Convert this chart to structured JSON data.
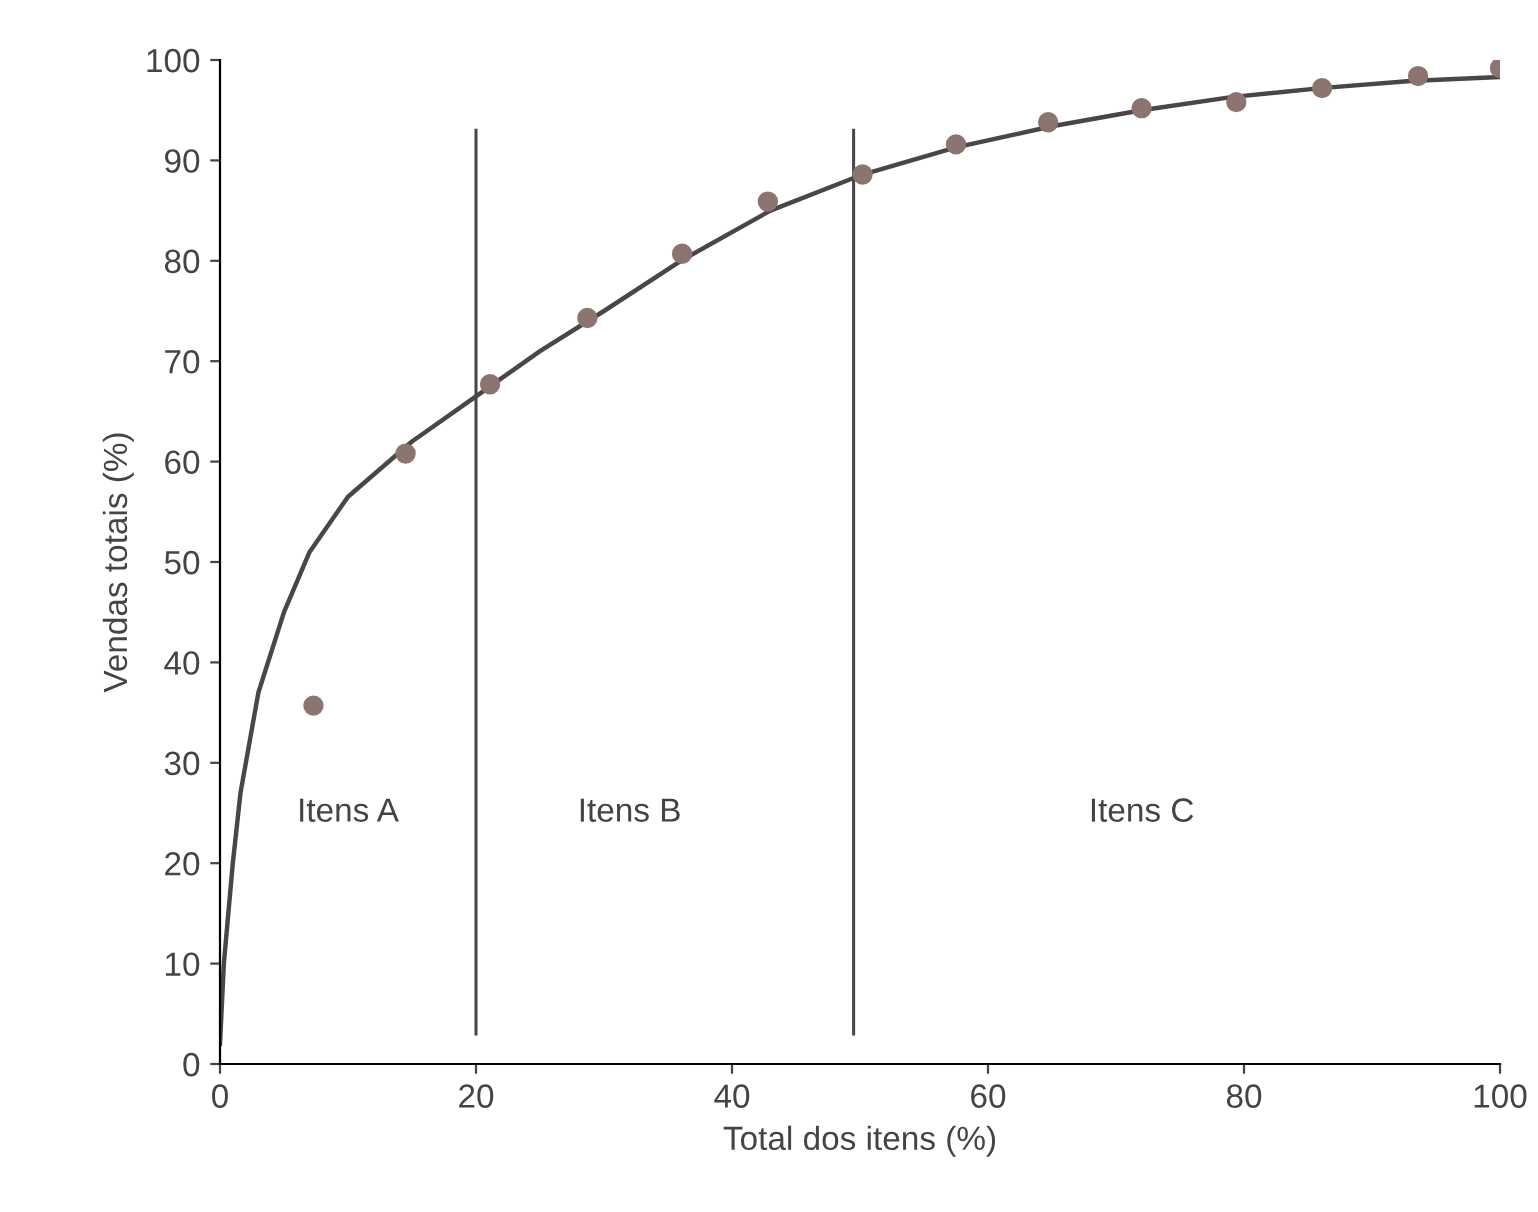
{
  "chart_data": {
    "type": "scatter",
    "xlabel": "Total dos itens (%)",
    "ylabel": "Vendas totais (%)",
    "xlim": [
      0,
      100
    ],
    "ylim": [
      0,
      100
    ],
    "xticks": [
      0,
      20,
      40,
      60,
      80,
      100
    ],
    "yticks": [
      0,
      10,
      20,
      30,
      40,
      50,
      60,
      70,
      80,
      90,
      100
    ],
    "grid": false,
    "marker": "circle",
    "series": [
      {
        "color": "#8c7470",
        "x": [
          7.3,
          14.5,
          21.1,
          28.7,
          36.1,
          42.8,
          50.2,
          57.5,
          64.7,
          72,
          79.4,
          86.1,
          93.6,
          100
        ],
        "values": [
          35.7,
          60.8,
          67.7,
          74.3,
          80.7,
          85.9,
          88.6,
          91.6,
          93.8,
          95.2,
          95.8,
          97.2,
          98.4,
          99.2
        ]
      },
      {
        "type": "line",
        "color": "#4a4646",
        "marker": "none",
        "line_style": "solid",
        "x": [
          0,
          0.3,
          1,
          1.6,
          3,
          5,
          7,
          10,
          15,
          20,
          25,
          30,
          36,
          43,
          50,
          57.5,
          65,
          72,
          79,
          86,
          93,
          100
        ],
        "values": [
          2,
          10,
          20,
          27,
          37,
          45,
          51,
          56.5,
          62,
          66.5,
          71,
          75,
          80,
          85,
          88.5,
          91.3,
          93.4,
          95,
          96.3,
          97.2,
          97.9,
          98.3
        ]
      }
    ],
    "ref_lines": [
      {
        "axis": "x",
        "value": 20,
        "color": "#4a4646"
      },
      {
        "axis": "x",
        "value": 49.5,
        "color": "#4a4646"
      }
    ],
    "annotations": [
      "Itens A",
      "Itens B",
      "Itens C"
    ]
  }
}
